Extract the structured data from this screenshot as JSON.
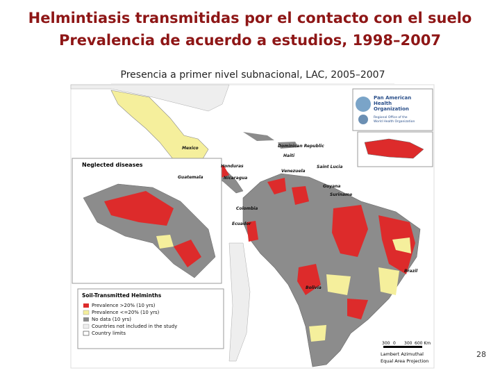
{
  "header": {
    "title_line1": "Helmintiasis transmitidas por el contacto con el suelo",
    "title_line2": "Prevalencia de acuerdo a estudios, 1998–2007"
  },
  "subtitle": "Presencia a primer nivel subnacional, LAC, 2005–2007",
  "map": {
    "labels": [
      "Mexico",
      "Dominican Republic",
      "Haiti",
      "Saint Lucia",
      "Honduras",
      "Guatemala",
      "Nicaragua",
      "Venezuela",
      "Guyana",
      "Suriname",
      "Colombia",
      "Ecuador",
      "Brazil",
      "Bolivia"
    ],
    "inset_title": "Neglected diseases",
    "legend": {
      "title": "Soil-Transmitted Helminths",
      "items": [
        "Prevalence >20% (10 yrs)",
        "Prevalence <=20% (10 yrs)",
        "No data (10 yrs)",
        "Countries not included in the study",
        "Country limits"
      ]
    },
    "scale": [
      "300",
      "0",
      "300",
      "600 Km"
    ],
    "projection": [
      "Lambert Azimuthal",
      "Equal Area Projection"
    ],
    "logo": {
      "name": [
        "Pan American",
        "Health",
        "Organization"
      ],
      "subtitle": [
        "Regional Office of the",
        "World Health Organization"
      ]
    }
  },
  "page_number": "28"
}
